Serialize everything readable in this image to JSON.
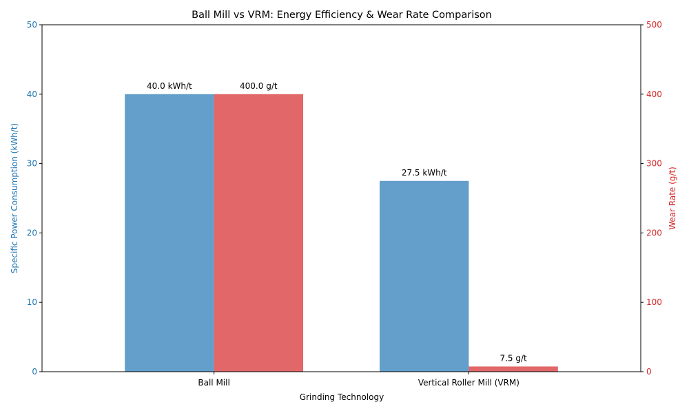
{
  "chart_data": {
    "type": "bar",
    "title": "Ball Mill vs VRM: Energy Efficiency & Wear Rate Comparison",
    "xlabel": "Grinding Technology",
    "categories": [
      "Ball Mill",
      "Vertical Roller Mill (VRM)"
    ],
    "series": [
      {
        "axis": "left",
        "values": [
          40.0,
          27.5
        ],
        "unit": "kWh/t",
        "data_labels": [
          "40.0 kWh/t",
          "27.5 kWh/t"
        ],
        "color": "#639fca"
      },
      {
        "axis": "right",
        "values": [
          400.0,
          7.5
        ],
        "unit": "g/t",
        "data_labels": [
          "400.0 g/t",
          "7.5 g/t"
        ],
        "color": "#e16768"
      }
    ],
    "y_left": {
      "label": "Specific Power Consumption (kWh/t)",
      "ylim": [
        0,
        50
      ],
      "ticks": [
        "0",
        "10",
        "20",
        "30",
        "40",
        "50"
      ],
      "color": "#1f77b4"
    },
    "y_right": {
      "label": "Wear Rate (g/t)",
      "ylim": [
        0,
        500
      ],
      "ticks": [
        "0",
        "100",
        "200",
        "300",
        "400",
        "500"
      ],
      "color": "#d62728"
    },
    "grid": false,
    "legend": "none"
  }
}
